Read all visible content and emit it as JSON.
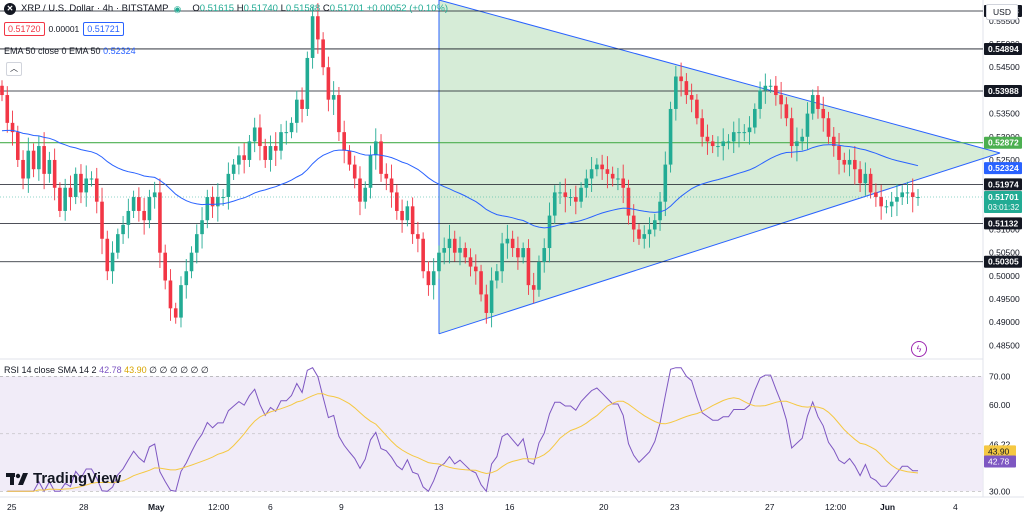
{
  "header": {
    "symbol_icon": "x-logo-icon",
    "title": "XRP / U.S. Dollar · 4h · BITSTAMP",
    "status_color": "#22ab94",
    "ohlc": {
      "o_label": "O",
      "o_value": "0.51615",
      "h_label": "H",
      "h_value": "0.51740",
      "l_label": "L",
      "l_value": "0.51588",
      "c_label": "C",
      "c_value": "0.51701",
      "change": "+0.00052 (+0.10%)"
    },
    "bid": "0.51720",
    "spread": "0.00001",
    "ask": "0.51721"
  },
  "ema_legend": {
    "label": "EMA 50 close 0 EMA 50",
    "value": "0.52324"
  },
  "rsi_legend": {
    "label": "RSI 14 close SMA 14 2",
    "rsi_value": "42.78",
    "sma_value": "43.90",
    "rest": "∅ ∅ ∅ ∅ ∅ ∅"
  },
  "currency_button": "USD",
  "brand": "TradingView",
  "colors": {
    "up": "#22ab94",
    "down": "#f23645",
    "ema": "#2962ff",
    "rsi": "#7e57c2",
    "rsi_sma": "#f5c842",
    "triangle_fill": "#c8e6c9",
    "hline_green": "#4caf50",
    "current_price": "#22ab94"
  },
  "chart_data": [
    {
      "type": "candlestick",
      "title": "XRP / U.S. Dollar · 4h · BITSTAMP",
      "price_ylim": [
        0.4825,
        0.5595
      ],
      "price_ticks": [
        "0.48500",
        "0.49000",
        "0.49500",
        "0.50000",
        "0.50500",
        "0.51000",
        "0.51500",
        "0.52000",
        "0.52500",
        "0.53000",
        "0.53500",
        "0.54000",
        "0.54500",
        "0.55000",
        "0.55500"
      ],
      "horizontal_levels": [
        {
          "value": "0.55713",
          "color": "#131722"
        },
        {
          "value": "0.54894",
          "color": "#131722"
        },
        {
          "value": "0.53988",
          "color": "#131722"
        },
        {
          "value": "0.52872",
          "color": "#4caf50"
        },
        {
          "value": "0.51974",
          "color": "#131722"
        },
        {
          "value": "0.51132",
          "color": "#131722"
        },
        {
          "value": "0.50305",
          "color": "#131722"
        }
      ],
      "ema_last": "0.52324",
      "current_price": "0.51701",
      "countdown": "03:01:32",
      "x_labels": [
        "25",
        "28",
        "May",
        "12:00",
        "6",
        "9",
        "13",
        "16",
        "20",
        "23",
        "27",
        "12:00",
        "Jun",
        "4"
      ],
      "triangle": {
        "apex_price": 0.5265,
        "upper_start_price": 0.5595,
        "lower_start_price": 0.4875
      },
      "closes": [
        0.539,
        0.533,
        0.531,
        0.525,
        0.521,
        0.527,
        0.523,
        0.528,
        0.522,
        0.525,
        0.519,
        0.514,
        0.519,
        0.517,
        0.522,
        0.518,
        0.521,
        0.521,
        0.516,
        0.508,
        0.501,
        0.505,
        0.509,
        0.511,
        0.514,
        0.517,
        0.514,
        0.512,
        0.517,
        0.518,
        0.505,
        0.499,
        0.493,
        0.491,
        0.498,
        0.501,
        0.505,
        0.509,
        0.512,
        0.517,
        0.515,
        0.517,
        0.517,
        0.522,
        0.524,
        0.526,
        0.525,
        0.529,
        0.532,
        0.528,
        0.525,
        0.528,
        0.527,
        0.531,
        0.531,
        0.533,
        0.538,
        0.536,
        0.547,
        0.556,
        0.551,
        0.545,
        0.538,
        0.539,
        0.531,
        0.527,
        0.524,
        0.521,
        0.516,
        0.519,
        0.526,
        0.529,
        0.522,
        0.521,
        0.518,
        0.514,
        0.512,
        0.515,
        0.509,
        0.508,
        0.501,
        0.498,
        0.501,
        0.505,
        0.506,
        0.508,
        0.505,
        0.506,
        0.504,
        0.502,
        0.501,
        0.496,
        0.492,
        0.499,
        0.501,
        0.507,
        0.508,
        0.506,
        0.504,
        0.506,
        0.498,
        0.497,
        0.503,
        0.506,
        0.513,
        0.518,
        0.518,
        0.517,
        0.517,
        0.516,
        0.519,
        0.521,
        0.523,
        0.524,
        0.523,
        0.522,
        0.521,
        0.521,
        0.519,
        0.513,
        0.51,
        0.508,
        0.509,
        0.51,
        0.512,
        0.516,
        0.524,
        0.536,
        0.543,
        0.542,
        0.539,
        0.538,
        0.534,
        0.53,
        0.529,
        0.528,
        0.528,
        0.529,
        0.529,
        0.531,
        0.531,
        0.531,
        0.532,
        0.536,
        0.54,
        0.541,
        0.541,
        0.539,
        0.537,
        0.534,
        0.528,
        0.529,
        0.53,
        0.535,
        0.539,
        0.536,
        0.534,
        0.53,
        0.528,
        0.525,
        0.524,
        0.525,
        0.523,
        0.52,
        0.522,
        0.518,
        0.517,
        0.515,
        0.515,
        0.516,
        0.517,
        0.518,
        0.518,
        0.517,
        0.517
      ],
      "ema50_ylim_note": "EMA 50 line in same price units"
    },
    {
      "type": "line",
      "title": "RSI 14 close SMA 14 2",
      "ylim": [
        28,
        75
      ],
      "y_ticks": [
        "30.00",
        "40.10",
        "46.22",
        "60.00",
        "70.00"
      ],
      "band": [
        30,
        70
      ],
      "rsi_last": "42.78",
      "sma_last": "43.90"
    }
  ]
}
